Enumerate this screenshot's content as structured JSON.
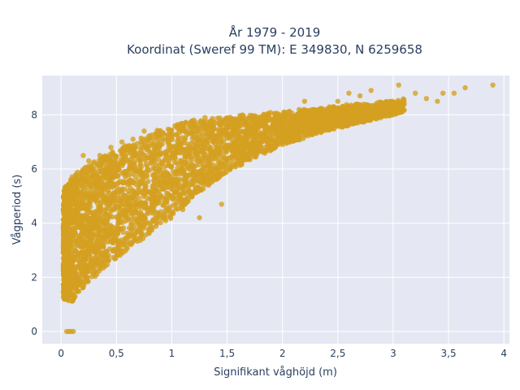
{
  "chart_data": {
    "type": "scatter",
    "title_lines": [
      "År 1979 - 2019",
      "Koordinat (Sweref 99 TM): E 349830, N 6259658"
    ],
    "xlabel": "Signifikant våghöjd (m)",
    "ylabel": "Vågperiod (s)",
    "xlim": [
      -0.17,
      4.05
    ],
    "ylim": [
      -0.45,
      9.45
    ],
    "x_ticks": [
      0,
      0.5,
      1,
      1.5,
      2,
      2.5,
      3,
      3.5,
      4
    ],
    "x_tick_labels": [
      "0",
      "0,5",
      "1",
      "1,5",
      "2",
      "2,5",
      "3",
      "3,5",
      "4"
    ],
    "y_ticks": [
      0,
      2,
      4,
      6,
      8
    ],
    "y_tick_labels": [
      "0",
      "2",
      "4",
      "6",
      "8"
    ],
    "grid": true,
    "marker_color": "#D4A020",
    "plot_bg": "#E5E8F2",
    "band": {
      "x": [
        0.02,
        0.1,
        0.2,
        0.3,
        0.4,
        0.5,
        0.6,
        0.7,
        0.8,
        0.9,
        1.0,
        1.1,
        1.2,
        1.3,
        1.4,
        1.5,
        1.6,
        1.7,
        1.8,
        1.9,
        2.0,
        2.1,
        2.2,
        2.3,
        2.4,
        2.5,
        2.6,
        2.7,
        2.8,
        2.9,
        3.0,
        3.1
      ],
      "lower": [
        1.2,
        1.1,
        1.6,
        2.0,
        2.4,
        2.7,
        3.0,
        3.3,
        3.6,
        3.9,
        4.2,
        4.6,
        5.0,
        5.3,
        5.6,
        5.9,
        6.1,
        6.3,
        6.5,
        6.7,
        6.9,
        7.0,
        7.1,
        7.3,
        7.4,
        7.5,
        7.6,
        7.7,
        7.8,
        7.9,
        8.0,
        8.1
      ],
      "upper": [
        5.2,
        5.8,
        6.0,
        6.3,
        6.5,
        6.7,
        6.9,
        7.1,
        7.3,
        7.5,
        7.6,
        7.7,
        7.8,
        7.8,
        7.9,
        7.9,
        8.0,
        8.0,
        8.0,
        8.1,
        8.1,
        8.2,
        8.2,
        8.2,
        8.3,
        8.3,
        8.4,
        8.4,
        8.4,
        8.5,
        8.5,
        8.6
      ]
    },
    "sparse_points": [
      {
        "x": 0.05,
        "y": 0.0
      },
      {
        "x": 0.07,
        "y": 0.0
      },
      {
        "x": 0.09,
        "y": 0.0
      },
      {
        "x": 0.11,
        "y": 0.0
      },
      {
        "x": 0.2,
        "y": 6.5
      },
      {
        "x": 0.25,
        "y": 6.3
      },
      {
        "x": 0.35,
        "y": 6.5
      },
      {
        "x": 0.45,
        "y": 6.8
      },
      {
        "x": 0.55,
        "y": 7.0
      },
      {
        "x": 0.65,
        "y": 7.1
      },
      {
        "x": 0.75,
        "y": 7.4
      },
      {
        "x": 0.85,
        "y": 7.3
      },
      {
        "x": 1.05,
        "y": 7.6
      },
      {
        "x": 1.1,
        "y": 7.5
      },
      {
        "x": 1.2,
        "y": 7.8
      },
      {
        "x": 1.3,
        "y": 7.9
      },
      {
        "x": 1.45,
        "y": 4.7
      },
      {
        "x": 1.25,
        "y": 4.2
      },
      {
        "x": 1.1,
        "y": 4.5
      },
      {
        "x": 0.9,
        "y": 4.3
      },
      {
        "x": 2.2,
        "y": 8.5
      },
      {
        "x": 2.5,
        "y": 8.5
      },
      {
        "x": 2.6,
        "y": 8.8
      },
      {
        "x": 2.7,
        "y": 8.7
      },
      {
        "x": 2.8,
        "y": 8.9
      },
      {
        "x": 3.05,
        "y": 9.1
      },
      {
        "x": 3.1,
        "y": 8.4
      },
      {
        "x": 3.2,
        "y": 8.8
      },
      {
        "x": 3.3,
        "y": 8.6
      },
      {
        "x": 3.45,
        "y": 8.8
      },
      {
        "x": 3.55,
        "y": 8.8
      },
      {
        "x": 3.65,
        "y": 9.0
      },
      {
        "x": 3.9,
        "y": 9.1
      },
      {
        "x": 3.4,
        "y": 8.5
      },
      {
        "x": 2.4,
        "y": 7.5
      },
      {
        "x": 2.0,
        "y": 7.2
      }
    ]
  }
}
